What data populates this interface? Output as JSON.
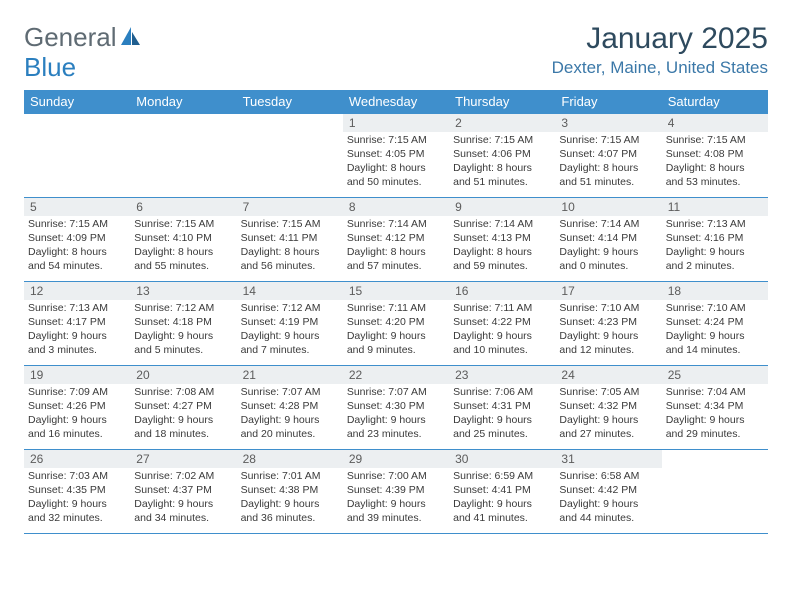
{
  "brand": {
    "g": "General",
    "b": "Blue"
  },
  "title": "January 2025",
  "location": "Dexter, Maine, United States",
  "colors": {
    "header_bg": "#3f8fcc",
    "header_fg": "#ffffff",
    "daynum_bg": "#eceff1",
    "rule": "#3f8fcc",
    "title_color": "#2e4a5e",
    "location_color": "#3b78a8",
    "logo_gray": "#5f6b73",
    "logo_blue": "#2b7fbf",
    "text": "#3a3a3a"
  },
  "dow": [
    "Sunday",
    "Monday",
    "Tuesday",
    "Wednesday",
    "Thursday",
    "Friday",
    "Saturday"
  ],
  "weeks": [
    [
      null,
      null,
      null,
      {
        "n": "1",
        "sr": "7:15 AM",
        "ss": "4:05 PM",
        "dl1": "Daylight: 8 hours",
        "dl2": "and 50 minutes."
      },
      {
        "n": "2",
        "sr": "7:15 AM",
        "ss": "4:06 PM",
        "dl1": "Daylight: 8 hours",
        "dl2": "and 51 minutes."
      },
      {
        "n": "3",
        "sr": "7:15 AM",
        "ss": "4:07 PM",
        "dl1": "Daylight: 8 hours",
        "dl2": "and 51 minutes."
      },
      {
        "n": "4",
        "sr": "7:15 AM",
        "ss": "4:08 PM",
        "dl1": "Daylight: 8 hours",
        "dl2": "and 53 minutes."
      }
    ],
    [
      {
        "n": "5",
        "sr": "7:15 AM",
        "ss": "4:09 PM",
        "dl1": "Daylight: 8 hours",
        "dl2": "and 54 minutes."
      },
      {
        "n": "6",
        "sr": "7:15 AM",
        "ss": "4:10 PM",
        "dl1": "Daylight: 8 hours",
        "dl2": "and 55 minutes."
      },
      {
        "n": "7",
        "sr": "7:15 AM",
        "ss": "4:11 PM",
        "dl1": "Daylight: 8 hours",
        "dl2": "and 56 minutes."
      },
      {
        "n": "8",
        "sr": "7:14 AM",
        "ss": "4:12 PM",
        "dl1": "Daylight: 8 hours",
        "dl2": "and 57 minutes."
      },
      {
        "n": "9",
        "sr": "7:14 AM",
        "ss": "4:13 PM",
        "dl1": "Daylight: 8 hours",
        "dl2": "and 59 minutes."
      },
      {
        "n": "10",
        "sr": "7:14 AM",
        "ss": "4:14 PM",
        "dl1": "Daylight: 9 hours",
        "dl2": "and 0 minutes."
      },
      {
        "n": "11",
        "sr": "7:13 AM",
        "ss": "4:16 PM",
        "dl1": "Daylight: 9 hours",
        "dl2": "and 2 minutes."
      }
    ],
    [
      {
        "n": "12",
        "sr": "7:13 AM",
        "ss": "4:17 PM",
        "dl1": "Daylight: 9 hours",
        "dl2": "and 3 minutes."
      },
      {
        "n": "13",
        "sr": "7:12 AM",
        "ss": "4:18 PM",
        "dl1": "Daylight: 9 hours",
        "dl2": "and 5 minutes."
      },
      {
        "n": "14",
        "sr": "7:12 AM",
        "ss": "4:19 PM",
        "dl1": "Daylight: 9 hours",
        "dl2": "and 7 minutes."
      },
      {
        "n": "15",
        "sr": "7:11 AM",
        "ss": "4:20 PM",
        "dl1": "Daylight: 9 hours",
        "dl2": "and 9 minutes."
      },
      {
        "n": "16",
        "sr": "7:11 AM",
        "ss": "4:22 PM",
        "dl1": "Daylight: 9 hours",
        "dl2": "and 10 minutes."
      },
      {
        "n": "17",
        "sr": "7:10 AM",
        "ss": "4:23 PM",
        "dl1": "Daylight: 9 hours",
        "dl2": "and 12 minutes."
      },
      {
        "n": "18",
        "sr": "7:10 AM",
        "ss": "4:24 PM",
        "dl1": "Daylight: 9 hours",
        "dl2": "and 14 minutes."
      }
    ],
    [
      {
        "n": "19",
        "sr": "7:09 AM",
        "ss": "4:26 PM",
        "dl1": "Daylight: 9 hours",
        "dl2": "and 16 minutes."
      },
      {
        "n": "20",
        "sr": "7:08 AM",
        "ss": "4:27 PM",
        "dl1": "Daylight: 9 hours",
        "dl2": "and 18 minutes."
      },
      {
        "n": "21",
        "sr": "7:07 AM",
        "ss": "4:28 PM",
        "dl1": "Daylight: 9 hours",
        "dl2": "and 20 minutes."
      },
      {
        "n": "22",
        "sr": "7:07 AM",
        "ss": "4:30 PM",
        "dl1": "Daylight: 9 hours",
        "dl2": "and 23 minutes."
      },
      {
        "n": "23",
        "sr": "7:06 AM",
        "ss": "4:31 PM",
        "dl1": "Daylight: 9 hours",
        "dl2": "and 25 minutes."
      },
      {
        "n": "24",
        "sr": "7:05 AM",
        "ss": "4:32 PM",
        "dl1": "Daylight: 9 hours",
        "dl2": "and 27 minutes."
      },
      {
        "n": "25",
        "sr": "7:04 AM",
        "ss": "4:34 PM",
        "dl1": "Daylight: 9 hours",
        "dl2": "and 29 minutes."
      }
    ],
    [
      {
        "n": "26",
        "sr": "7:03 AM",
        "ss": "4:35 PM",
        "dl1": "Daylight: 9 hours",
        "dl2": "and 32 minutes."
      },
      {
        "n": "27",
        "sr": "7:02 AM",
        "ss": "4:37 PM",
        "dl1": "Daylight: 9 hours",
        "dl2": "and 34 minutes."
      },
      {
        "n": "28",
        "sr": "7:01 AM",
        "ss": "4:38 PM",
        "dl1": "Daylight: 9 hours",
        "dl2": "and 36 minutes."
      },
      {
        "n": "29",
        "sr": "7:00 AM",
        "ss": "4:39 PM",
        "dl1": "Daylight: 9 hours",
        "dl2": "and 39 minutes."
      },
      {
        "n": "30",
        "sr": "6:59 AM",
        "ss": "4:41 PM",
        "dl1": "Daylight: 9 hours",
        "dl2": "and 41 minutes."
      },
      {
        "n": "31",
        "sr": "6:58 AM",
        "ss": "4:42 PM",
        "dl1": "Daylight: 9 hours",
        "dl2": "and 44 minutes."
      },
      null
    ]
  ],
  "labels": {
    "sunrise": "Sunrise: ",
    "sunset": "Sunset: "
  }
}
